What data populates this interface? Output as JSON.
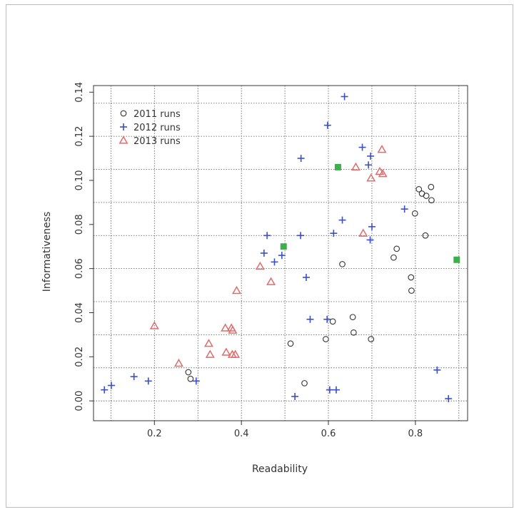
{
  "chart_data": {
    "type": "scatter",
    "xlabel": "Readability",
    "ylabel": "Informativeness",
    "xlim": [
      0.06,
      0.92
    ],
    "ylim": [
      -0.009,
      0.143
    ],
    "x_ticks": [
      0.2,
      0.4,
      0.6,
      0.8
    ],
    "y_ticks": [
      0.0,
      0.02,
      0.04,
      0.06,
      0.08,
      0.1,
      0.12,
      0.14
    ],
    "x_tick_labels": [
      "0.2",
      "0.4",
      "0.6",
      "0.8"
    ],
    "y_tick_labels": [
      "0.00",
      "0.02",
      "0.04",
      "0.06",
      "0.08",
      "0.10",
      "0.12",
      "0.14"
    ],
    "grid": true,
    "legend_position": "top-left",
    "series": [
      {
        "name": "2011 runs",
        "marker": "circle",
        "color": "#333333",
        "points": [
          [
            0.808,
            0.096
          ],
          [
            0.815,
            0.094
          ],
          [
            0.825,
            0.093
          ],
          [
            0.836,
            0.097
          ],
          [
            0.837,
            0.091
          ],
          [
            0.799,
            0.085
          ],
          [
            0.823,
            0.075
          ],
          [
            0.757,
            0.069
          ],
          [
            0.75,
            0.065
          ],
          [
            0.79,
            0.056
          ],
          [
            0.791,
            0.05
          ],
          [
            0.632,
            0.062
          ],
          [
            0.656,
            0.038
          ],
          [
            0.61,
            0.036
          ],
          [
            0.658,
            0.031
          ],
          [
            0.594,
            0.028
          ],
          [
            0.698,
            0.028
          ],
          [
            0.513,
            0.026
          ],
          [
            0.545,
            0.008
          ],
          [
            0.278,
            0.013
          ],
          [
            0.283,
            0.01
          ]
        ]
      },
      {
        "name": "2012 runs",
        "marker": "plus",
        "color": "#3a4fc8",
        "points": [
          [
            0.637,
            0.138
          ],
          [
            0.598,
            0.125
          ],
          [
            0.678,
            0.115
          ],
          [
            0.697,
            0.111
          ],
          [
            0.537,
            0.11
          ],
          [
            0.692,
            0.107
          ],
          [
            0.775,
            0.087
          ],
          [
            0.632,
            0.082
          ],
          [
            0.7,
            0.079
          ],
          [
            0.612,
            0.076
          ],
          [
            0.696,
            0.073
          ],
          [
            0.459,
            0.075
          ],
          [
            0.536,
            0.075
          ],
          [
            0.452,
            0.067
          ],
          [
            0.493,
            0.066
          ],
          [
            0.476,
            0.063
          ],
          [
            0.549,
            0.056
          ],
          [
            0.558,
            0.037
          ],
          [
            0.597,
            0.037
          ],
          [
            0.603,
            0.005
          ],
          [
            0.618,
            0.005
          ],
          [
            0.523,
            0.002
          ],
          [
            0.085,
            0.005
          ],
          [
            0.101,
            0.007
          ],
          [
            0.153,
            0.011
          ],
          [
            0.186,
            0.009
          ],
          [
            0.296,
            0.009
          ],
          [
            0.85,
            0.014
          ],
          [
            0.876,
            0.001
          ]
        ]
      },
      {
        "name": "2013 runs",
        "marker": "triangle",
        "color": "#e06c6c",
        "points": [
          [
            0.723,
            0.114
          ],
          [
            0.663,
            0.106
          ],
          [
            0.718,
            0.104
          ],
          [
            0.725,
            0.103
          ],
          [
            0.698,
            0.101
          ],
          [
            0.68,
            0.076
          ],
          [
            0.443,
            0.061
          ],
          [
            0.468,
            0.054
          ],
          [
            0.389,
            0.05
          ],
          [
            0.2,
            0.034
          ],
          [
            0.363,
            0.033
          ],
          [
            0.377,
            0.033
          ],
          [
            0.38,
            0.032
          ],
          [
            0.365,
            0.022
          ],
          [
            0.379,
            0.021
          ],
          [
            0.386,
            0.021
          ],
          [
            0.325,
            0.026
          ],
          [
            0.328,
            0.021
          ],
          [
            0.256,
            0.017
          ]
        ]
      }
    ],
    "highlighted_points": {
      "color": "#3cb04a",
      "points": [
        [
          0.622,
          0.106
        ],
        [
          0.497,
          0.07
        ],
        [
          0.895,
          0.064
        ]
      ]
    }
  }
}
